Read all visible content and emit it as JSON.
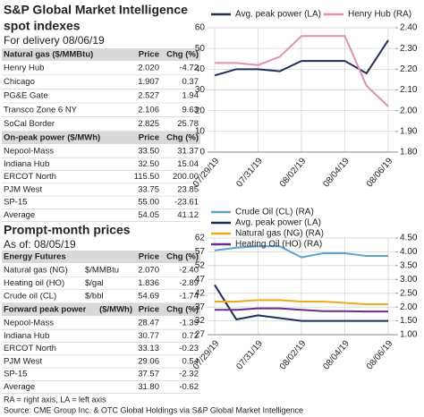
{
  "header": {
    "title": "S&P Global Market Intelligence",
    "subtitle": "spot indexes",
    "delivery": "For delivery 08/06/19"
  },
  "section2": {
    "title": "Prompt-month prices",
    "asof": "As of: 08/05/19"
  },
  "tables": [
    {
      "header": [
        "Natural gas ($/MMBtu)",
        "Price",
        "Chg (%)"
      ],
      "rows": [
        [
          "Henry Hub",
          "2.020",
          "-4.72"
        ],
        [
          "Chicago",
          "1.907",
          "0.37"
        ],
        [
          "PG&E Gate",
          "2.527",
          "1.94"
        ],
        [
          "Transco Zone 6 NY",
          "2.106",
          "9.63"
        ],
        [
          "SoCal Border",
          "2.825",
          "25.78"
        ]
      ]
    },
    {
      "header": [
        "On-peak power ($/MWh)",
        "Price",
        "Chg (%)"
      ],
      "rows": [
        [
          "Nepool-Mass",
          "33.50",
          "31.37"
        ],
        [
          "Indiana Hub",
          "32.50",
          "15.04"
        ],
        [
          "ERCOT North",
          "115.50",
          "200.00"
        ],
        [
          "PJM West",
          "33.75",
          "23.85"
        ],
        [
          "SP-15",
          "55.00",
          "-23.61"
        ],
        [
          "Average",
          "54.05",
          "41.12"
        ]
      ]
    },
    {
      "header": [
        "Energy Futures",
        "Price",
        "Chg (%)"
      ],
      "rows": [
        [
          "Natural gas (NG)",
          "$/MMBtu",
          "2.070",
          "-2.40"
        ],
        [
          "Heating oil (HO)",
          "$/gal",
          "1.836",
          "-2.89"
        ],
        [
          "Crude oil (CL)",
          "$/bbl",
          "54.69",
          "-1.74"
        ]
      ]
    },
    {
      "header": [
        "Forward peak power",
        "($/MWh)",
        "Price",
        "Chg (%)"
      ],
      "rows": [
        [
          "Nepool-Mass",
          "28.47",
          "-1.39"
        ],
        [
          "Indiana Hub",
          "30.77",
          "0.72"
        ],
        [
          "ERCOT North",
          "33.13",
          "-0.23"
        ],
        [
          "PJM West",
          "29.06",
          "0.54"
        ],
        [
          "SP-15",
          "37.57",
          "-2.32"
        ],
        [
          "Average",
          "31.80",
          "-0.62"
        ]
      ]
    }
  ],
  "footer": {
    "note": "RA = right axis, LA = left axis",
    "source": "Source: CME Group Inc. & OTC Global Holdings via S&P Global Market Intelligence"
  },
  "chart_data": [
    {
      "type": "line",
      "categories": [
        "07/29/19",
        null,
        "07/31/19",
        null,
        "08/02/19",
        null,
        "08/04/19",
        null,
        "08/06/19"
      ],
      "series": [
        {
          "name": "Avg. peak power (LA)",
          "color": "#1f2d5a",
          "values": [
            37,
            40,
            40,
            39,
            44,
            44,
            44,
            38,
            54
          ]
        },
        {
          "name": "Henry Hub (RA)",
          "color": "#e48fae",
          "axis": "y2",
          "values": [
            2.23,
            2.23,
            2.22,
            2.26,
            2.36,
            2.36,
            2.36,
            2.12,
            2.02
          ]
        }
      ],
      "ylim": [
        0,
        60
      ],
      "yticks": [
        0,
        10,
        20,
        30,
        40,
        50,
        60
      ],
      "y2lim": [
        1.8,
        2.4
      ],
      "y2ticks": [
        {
          "value": 1.8,
          "label": "1.80"
        },
        {
          "value": 1.9,
          "label": "1.90"
        },
        {
          "value": 2.0,
          "label": "2.00"
        },
        {
          "value": 2.1,
          "label": "2.10"
        },
        {
          "value": 2.2,
          "label": "2.20"
        },
        {
          "value": 2.3,
          "label": "2.30"
        },
        {
          "value": 2.4,
          "label": "2.40"
        }
      ],
      "grid": true
    },
    {
      "type": "line",
      "categories": [
        "07/29/19",
        null,
        "07/31/19",
        null,
        "08/02/19",
        null,
        "08/04/19",
        null,
        "08/06/19"
      ],
      "series": [
        {
          "name": "Crude Oil (CL) (RA)",
          "color": "#5ba3d0",
          "values": [
            57.5,
            58.5,
            59,
            59,
            55,
            56.5,
            56.5,
            55.5,
            55.5
          ]
        },
        {
          "name": "Avg. peak power (LA)",
          "color": "#1f2d5a",
          "values": [
            45,
            32.5,
            34,
            33,
            32,
            32,
            32,
            32,
            32
          ]
        },
        {
          "name": "Natural gas (NG) (RA)",
          "color": "#f0a81c",
          "axis": "y2",
          "values": [
            2.2,
            2.2,
            2.25,
            2.25,
            2.2,
            2.2,
            2.15,
            2.1,
            2.1
          ]
        },
        {
          "name": "Heating Oil (HO) (RA)",
          "color": "#6b2c8f",
          "axis": "y2",
          "values": [
            1.9,
            1.9,
            1.95,
            1.95,
            1.9,
            1.85,
            1.85,
            1.84,
            1.84
          ]
        }
      ],
      "ylim": [
        27,
        62
      ],
      "yticks": [
        27,
        32,
        37,
        42,
        47,
        52,
        57,
        62
      ],
      "y2lim": [
        1,
        4.5
      ],
      "y2ticks": [
        {
          "value": 1,
          "label": "1.00"
        },
        {
          "value": 1.5,
          "label": "1.50"
        },
        {
          "value": 2,
          "label": "2.00"
        },
        {
          "value": 2.5,
          "label": "2.50"
        },
        {
          "value": 3,
          "label": "3.00"
        },
        {
          "value": 3.5,
          "label": "3.50"
        },
        {
          "value": 4,
          "label": "4.00"
        },
        {
          "value": 4.5,
          "label": "4.50"
        }
      ],
      "grid": true
    }
  ]
}
